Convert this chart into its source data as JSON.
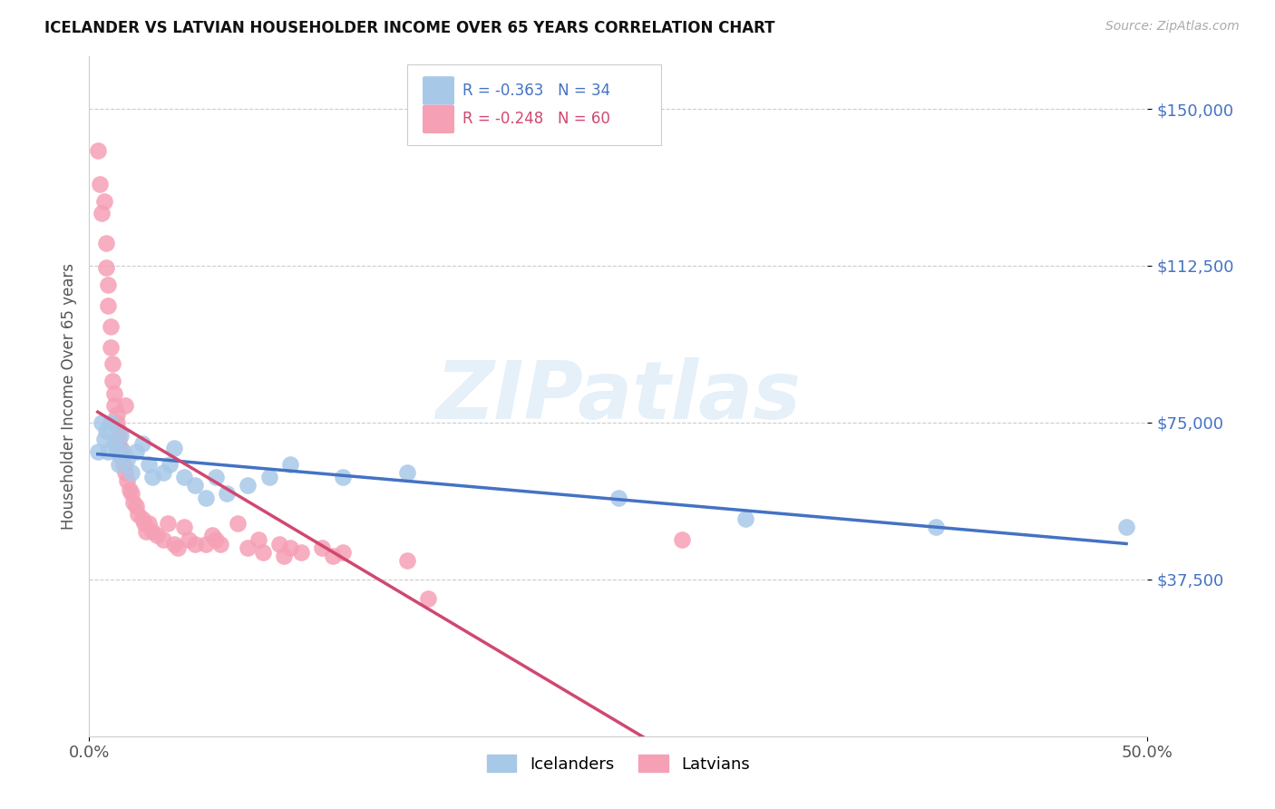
{
  "title": "ICELANDER VS LATVIAN HOUSEHOLDER INCOME OVER 65 YEARS CORRELATION CHART",
  "source": "Source: ZipAtlas.com",
  "ylabel": "Householder Income Over 65 years",
  "xlim": [
    0.0,
    0.5
  ],
  "ylim": [
    0,
    162500
  ],
  "yticks": [
    37500,
    75000,
    112500,
    150000
  ],
  "ytick_labels": [
    "$37,500",
    "$75,000",
    "$112,500",
    "$150,000"
  ],
  "xtick_labels": [
    "0.0%",
    "50.0%"
  ],
  "background_color": "#ffffff",
  "icelander_color": "#a8c8e8",
  "latvian_color": "#f5a0b5",
  "icelander_line_color": "#4472c4",
  "latvian_line_color": "#d04870",
  "legend_ice_r": "R = -0.363",
  "legend_ice_n": "N = 34",
  "legend_lat_r": "R = -0.248",
  "legend_lat_n": "N = 60",
  "icelander_scatter": [
    [
      0.004,
      68000
    ],
    [
      0.006,
      75000
    ],
    [
      0.007,
      71000
    ],
    [
      0.008,
      73000
    ],
    [
      0.009,
      68000
    ],
    [
      0.01,
      75000
    ],
    [
      0.012,
      70000
    ],
    [
      0.013,
      68000
    ],
    [
      0.014,
      65000
    ],
    [
      0.015,
      72000
    ],
    [
      0.016,
      68000
    ],
    [
      0.018,
      66000
    ],
    [
      0.02,
      63000
    ],
    [
      0.022,
      68000
    ],
    [
      0.025,
      70000
    ],
    [
      0.028,
      65000
    ],
    [
      0.03,
      62000
    ],
    [
      0.035,
      63000
    ],
    [
      0.038,
      65000
    ],
    [
      0.04,
      69000
    ],
    [
      0.045,
      62000
    ],
    [
      0.05,
      60000
    ],
    [
      0.055,
      57000
    ],
    [
      0.06,
      62000
    ],
    [
      0.065,
      58000
    ],
    [
      0.075,
      60000
    ],
    [
      0.085,
      62000
    ],
    [
      0.095,
      65000
    ],
    [
      0.12,
      62000
    ],
    [
      0.15,
      63000
    ],
    [
      0.25,
      57000
    ],
    [
      0.31,
      52000
    ],
    [
      0.4,
      50000
    ],
    [
      0.49,
      50000
    ]
  ],
  "latvian_scatter": [
    [
      0.004,
      140000
    ],
    [
      0.005,
      132000
    ],
    [
      0.006,
      125000
    ],
    [
      0.007,
      128000
    ],
    [
      0.008,
      118000
    ],
    [
      0.008,
      112000
    ],
    [
      0.009,
      108000
    ],
    [
      0.009,
      103000
    ],
    [
      0.01,
      98000
    ],
    [
      0.01,
      93000
    ],
    [
      0.011,
      89000
    ],
    [
      0.011,
      85000
    ],
    [
      0.012,
      82000
    ],
    [
      0.012,
      79000
    ],
    [
      0.013,
      77000
    ],
    [
      0.013,
      75000
    ],
    [
      0.014,
      73000
    ],
    [
      0.014,
      71000
    ],
    [
      0.015,
      69000
    ],
    [
      0.015,
      67000
    ],
    [
      0.016,
      65000
    ],
    [
      0.017,
      63000
    ],
    [
      0.017,
      79000
    ],
    [
      0.018,
      61000
    ],
    [
      0.019,
      59000
    ],
    [
      0.02,
      58000
    ],
    [
      0.021,
      56000
    ],
    [
      0.022,
      55000
    ],
    [
      0.023,
      53000
    ],
    [
      0.025,
      52000
    ],
    [
      0.026,
      51000
    ],
    [
      0.027,
      49000
    ],
    [
      0.028,
      51000
    ],
    [
      0.03,
      49000
    ],
    [
      0.032,
      48000
    ],
    [
      0.035,
      47000
    ],
    [
      0.037,
      51000
    ],
    [
      0.04,
      46000
    ],
    [
      0.042,
      45000
    ],
    [
      0.045,
      50000
    ],
    [
      0.047,
      47000
    ],
    [
      0.05,
      46000
    ],
    [
      0.055,
      46000
    ],
    [
      0.058,
      48000
    ],
    [
      0.06,
      47000
    ],
    [
      0.062,
      46000
    ],
    [
      0.07,
      51000
    ],
    [
      0.075,
      45000
    ],
    [
      0.08,
      47000
    ],
    [
      0.082,
      44000
    ],
    [
      0.09,
      46000
    ],
    [
      0.092,
      43000
    ],
    [
      0.095,
      45000
    ],
    [
      0.1,
      44000
    ],
    [
      0.11,
      45000
    ],
    [
      0.115,
      43000
    ],
    [
      0.12,
      44000
    ],
    [
      0.15,
      42000
    ],
    [
      0.16,
      33000
    ],
    [
      0.28,
      47000
    ]
  ]
}
